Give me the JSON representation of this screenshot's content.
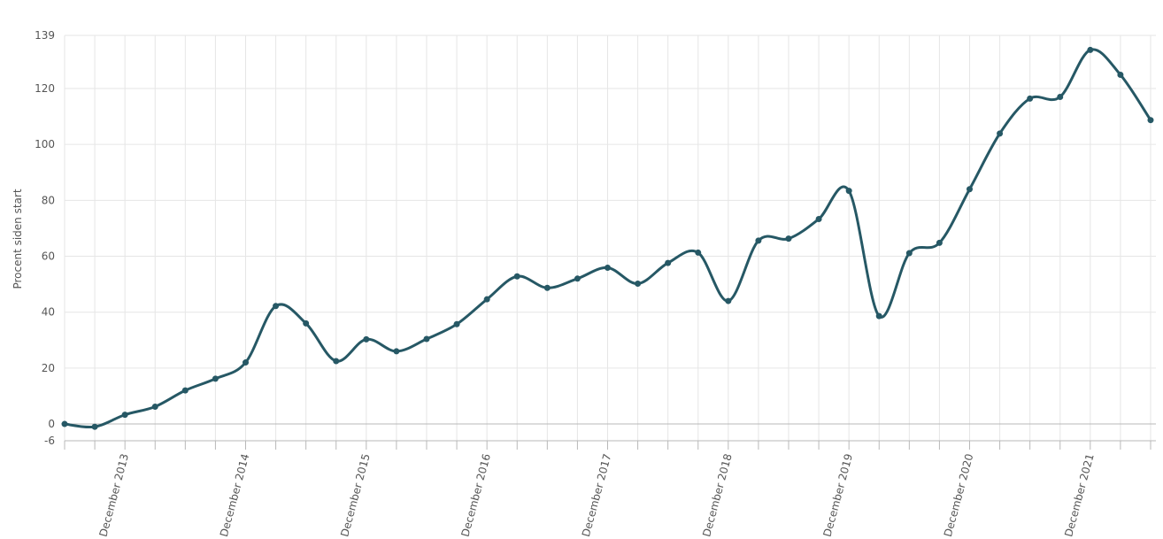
{
  "chart_data": {
    "type": "line",
    "title": "",
    "xlabel": "",
    "ylabel": "Procent siden start",
    "ylim": [
      -6,
      139
    ],
    "y_ticks": [
      139,
      120,
      100,
      80,
      60,
      40,
      20,
      0,
      -6
    ],
    "x_tick_labels": [
      "December 2013",
      "December 2014",
      "December 2015",
      "December 2016",
      "December 2017",
      "December 2018",
      "December 2019",
      "December 2020",
      "December 2021"
    ],
    "x_tick_label_indices": [
      2,
      6,
      10,
      14,
      18,
      22,
      26,
      30,
      34
    ],
    "grid": true,
    "line_color": "#265865",
    "series": [
      {
        "values": [
          0,
          -1,
          3.3,
          6.2,
          12,
          16.2,
          22,
          42.2,
          36,
          22.5,
          30.3,
          26,
          30.4,
          35.7,
          44.6,
          52.8,
          48.7,
          52,
          55.9,
          50.2,
          57.6,
          61.3,
          44,
          65.6,
          66.3,
          73.3,
          83.4,
          38.6,
          61.1,
          64.8,
          84,
          103.9,
          116.4,
          117,
          133.8,
          124.9,
          108.7
        ]
      }
    ]
  }
}
